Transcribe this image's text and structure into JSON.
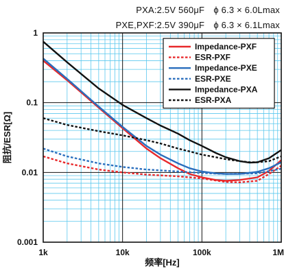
{
  "header": {
    "line1": "PXA:2.5V 560μF　ϕ 6.3 × 6.0Lmax",
    "line2": "PXE,PXF:2.5V 390μF　ϕ 6.3 × 6.1Lmax"
  },
  "chart_data": {
    "type": "line",
    "xlabel": "频率[Hz]",
    "ylabel": "阻抗/ESR[Ω]",
    "xscale": "log",
    "yscale": "log",
    "xlim": [
      1000,
      1000000
    ],
    "ylim": [
      0.001,
      1
    ],
    "xticks": [
      {
        "value": 1000,
        "label": "1k"
      },
      {
        "value": 10000,
        "label": "10k"
      },
      {
        "value": 100000,
        "label": "100k"
      },
      {
        "value": 1000000,
        "label": "1M"
      }
    ],
    "yticks": [
      {
        "value": 1,
        "label": "1"
      },
      {
        "value": 0.1,
        "label": "0.1"
      },
      {
        "value": 0.01,
        "label": "0.01"
      },
      {
        "value": 0.001,
        "label": "0.001"
      }
    ],
    "grid": true,
    "legend_position": "top-right",
    "colors": {
      "grid": "#5bc8ee",
      "major_grid": "#111111"
    },
    "series": [
      {
        "name": "Impedance-PXF",
        "color": "#e8292b",
        "style": "solid",
        "x": [
          1000,
          2000,
          5000,
          10000,
          20000,
          30000,
          50000,
          70000,
          100000,
          150000,
          200000,
          300000,
          500000,
          700000,
          1000000
        ],
        "y": [
          0.4,
          0.21,
          0.085,
          0.043,
          0.022,
          0.016,
          0.0115,
          0.0095,
          0.0085,
          0.0078,
          0.0076,
          0.0078,
          0.0085,
          0.0105,
          0.015
        ]
      },
      {
        "name": "ESR-PXF",
        "color": "#e8292b",
        "style": "dotted",
        "x": [
          1000,
          2000,
          5000,
          10000,
          20000,
          50000,
          100000,
          200000,
          300000,
          500000,
          700000,
          1000000
        ],
        "y": [
          0.017,
          0.0135,
          0.011,
          0.01,
          0.0093,
          0.0088,
          0.0082,
          0.0073,
          0.0072,
          0.0076,
          0.0095,
          0.0125
        ]
      },
      {
        "name": "Impedance-PXE",
        "color": "#2a6ebd",
        "style": "solid",
        "x": [
          1000,
          2000,
          5000,
          10000,
          20000,
          30000,
          50000,
          70000,
          100000,
          150000,
          200000,
          300000,
          500000,
          700000,
          1000000
        ],
        "y": [
          0.43,
          0.22,
          0.088,
          0.045,
          0.024,
          0.018,
          0.0135,
          0.0115,
          0.0103,
          0.0097,
          0.0095,
          0.0095,
          0.0102,
          0.0115,
          0.014
        ]
      },
      {
        "name": "ESR-PXE",
        "color": "#2a6ebd",
        "style": "dotted",
        "x": [
          1000,
          2000,
          5000,
          10000,
          20000,
          50000,
          100000,
          200000,
          500000,
          1000000
        ],
        "y": [
          0.022,
          0.017,
          0.0135,
          0.012,
          0.011,
          0.0103,
          0.0098,
          0.0095,
          0.0097,
          0.0113
        ]
      },
      {
        "name": "Impedance-PXA",
        "color": "#111111",
        "style": "solid",
        "x": [
          1000,
          2000,
          5000,
          10000,
          20000,
          30000,
          50000,
          70000,
          100000,
          150000,
          200000,
          300000,
          400000,
          500000,
          700000,
          1000000
        ],
        "y": [
          0.75,
          0.38,
          0.16,
          0.093,
          0.06,
          0.047,
          0.036,
          0.029,
          0.024,
          0.019,
          0.0165,
          0.0145,
          0.0138,
          0.014,
          0.016,
          0.021
        ]
      },
      {
        "name": "ESR-PXA",
        "color": "#111111",
        "style": "dotted",
        "x": [
          1000,
          2000,
          5000,
          10000,
          20000,
          30000,
          50000,
          70000,
          100000,
          150000,
          200000,
          300000,
          400000,
          500000,
          700000,
          1000000
        ],
        "y": [
          0.06,
          0.048,
          0.039,
          0.034,
          0.029,
          0.026,
          0.022,
          0.02,
          0.018,
          0.0165,
          0.0155,
          0.0145,
          0.014,
          0.014,
          0.0145,
          0.017
        ]
      }
    ]
  }
}
